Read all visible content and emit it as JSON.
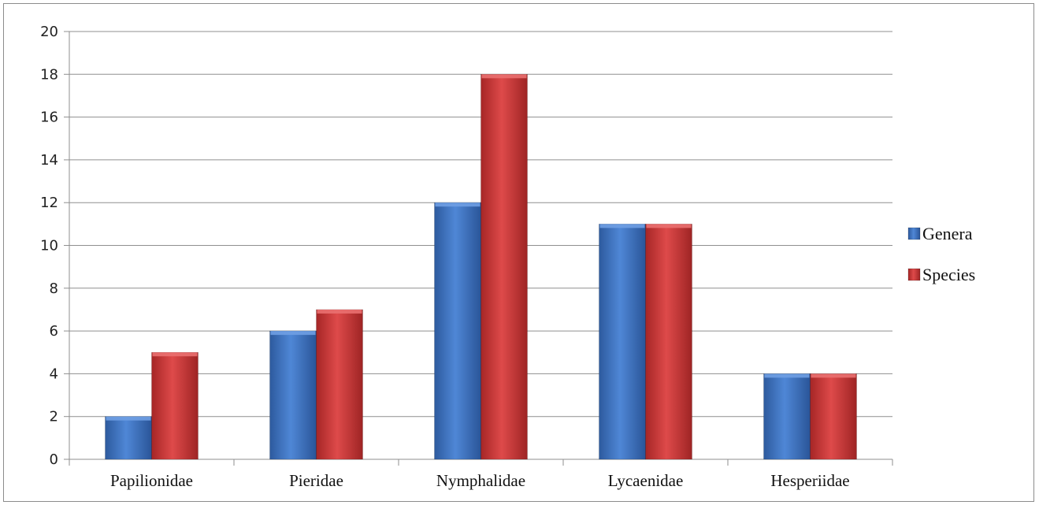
{
  "chart_data": {
    "type": "bar",
    "title": "",
    "xlabel": "",
    "ylabel": "",
    "categories": [
      "Papilionidae",
      "Pieridae",
      "Nymphalidae",
      "Lycaenidae",
      "Hesperiidae"
    ],
    "series": [
      {
        "name": "Genera",
        "values": [
          2,
          6,
          12,
          11,
          4
        ],
        "color": "#3f76c4"
      },
      {
        "name": "Species",
        "values": [
          5,
          7,
          18,
          11,
          4
        ],
        "color": "#cc3b3b"
      }
    ],
    "ylim": [
      0,
      20
    ],
    "yticks": [
      0,
      2,
      4,
      6,
      8,
      10,
      12,
      14,
      16,
      18,
      20
    ],
    "grid": true,
    "legend_position": "right"
  }
}
